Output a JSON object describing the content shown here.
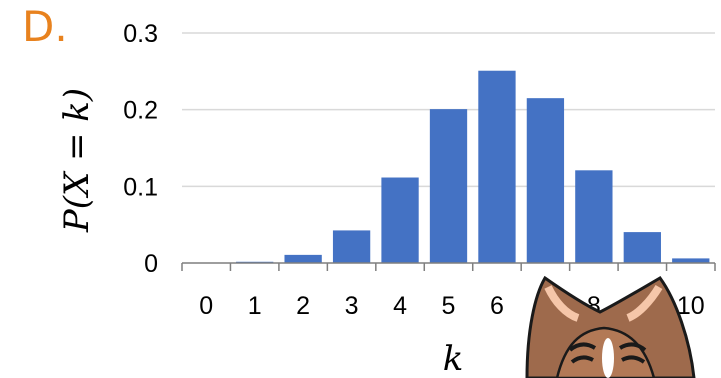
{
  "option_label": "D.",
  "chart_data": {
    "type": "bar",
    "categories": [
      "0",
      "1",
      "2",
      "3",
      "4",
      "5",
      "6",
      "7",
      "8",
      "9",
      "10"
    ],
    "values": [
      0.0001,
      0.0016,
      0.0106,
      0.0425,
      0.1115,
      0.2007,
      0.2508,
      0.215,
      0.1209,
      0.0403,
      0.006
    ],
    "xlabel": "k",
    "ylabel": "P(X = k)",
    "ylim": [
      0,
      0.3
    ],
    "yticks": [
      "0",
      "0.1",
      "0.2",
      "0.3"
    ],
    "bar_color": "#4472c4",
    "grid": true
  },
  "overlay": {
    "icon": "cat-mascot-icon"
  }
}
